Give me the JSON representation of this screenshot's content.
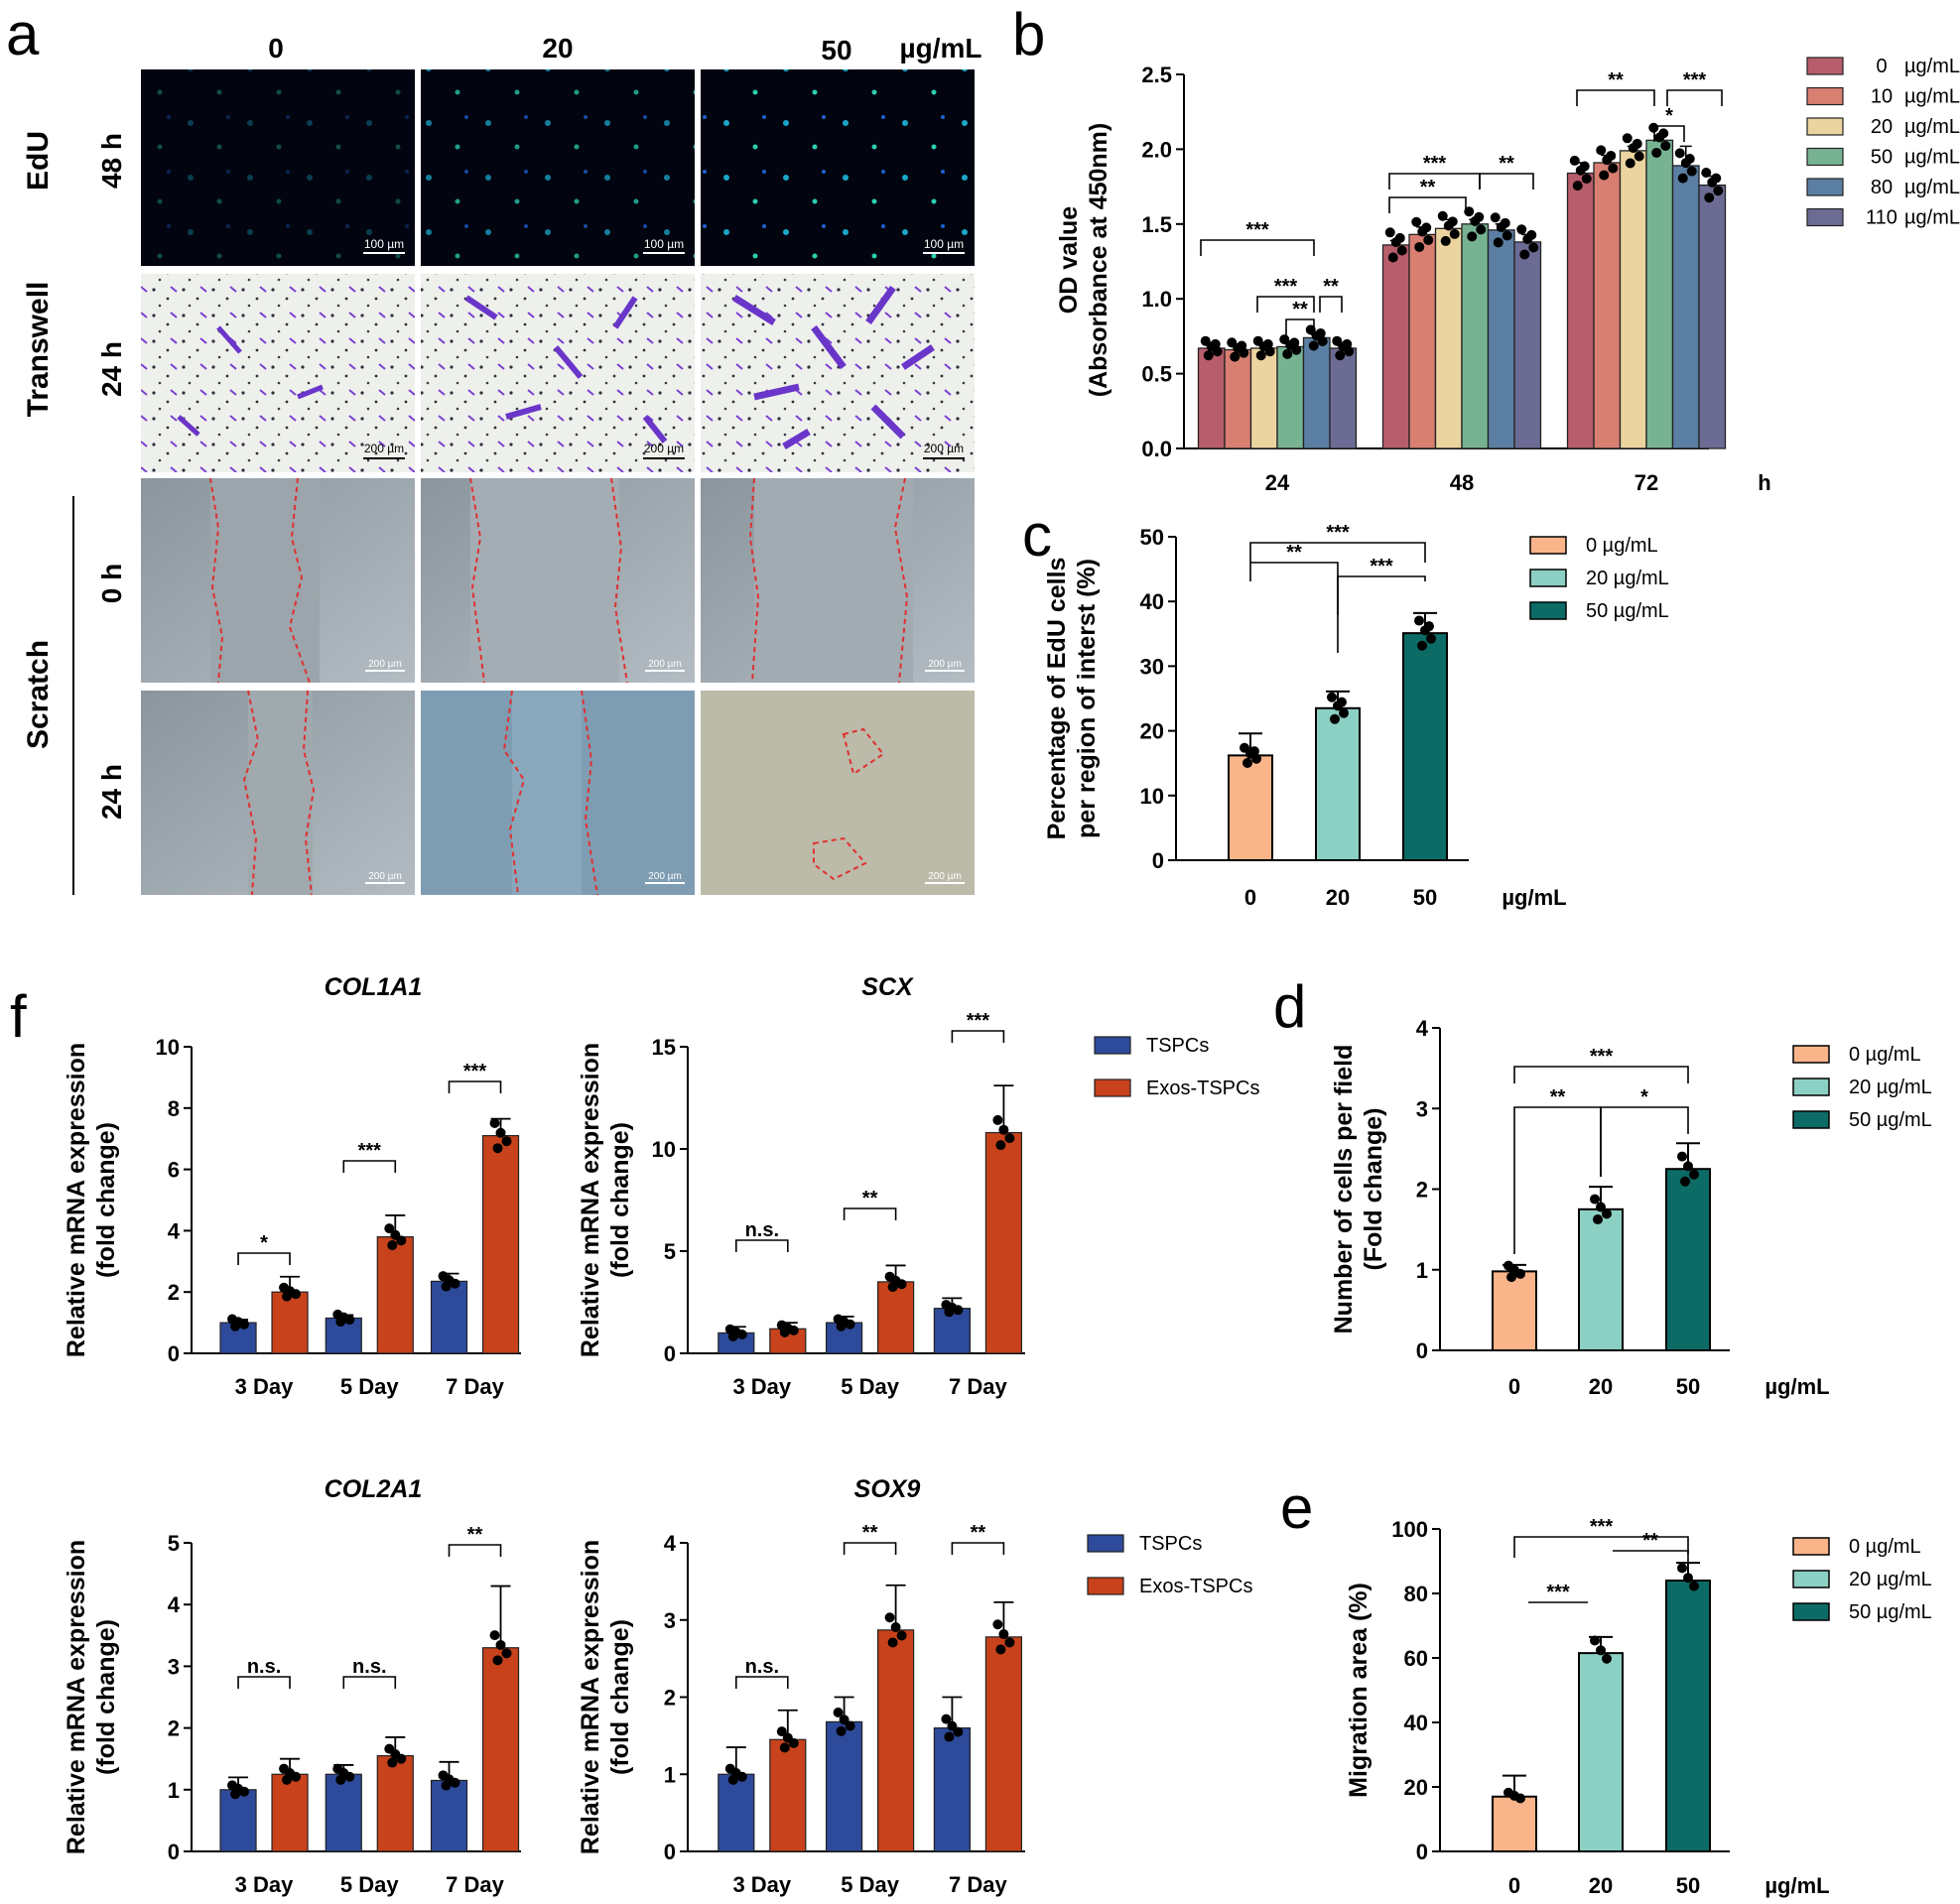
{
  "panel_labels": {
    "a": "a",
    "b": "b",
    "c": "c",
    "d": "d",
    "e": "e",
    "f": "f"
  },
  "panel_a": {
    "columns": [
      "0",
      "20",
      "50"
    ],
    "unit": "µg/mL",
    "rows": [
      {
        "group": "EdU",
        "time": "48 h",
        "scale": "100 µm"
      },
      {
        "group": "Transwell",
        "time": "24 h",
        "scale": "200 µm"
      },
      {
        "group": "Scratch",
        "time": "0 h",
        "scale": "200 µm"
      },
      {
        "group": "",
        "time": "24 h",
        "scale": "200 µm"
      }
    ],
    "scratch_label": "Scratch"
  },
  "chart_data": [
    {
      "id": "b",
      "type": "bar",
      "ylabel_line1": "OD value",
      "ylabel_line2": "(Absorbance at 450nm)",
      "xunit": "h",
      "categories": [
        "24",
        "48",
        "72"
      ],
      "ylim": [
        0,
        2.5
      ],
      "yticks": [
        "0.0",
        "0.5",
        "1.0",
        "1.5",
        "2.0",
        "2.5"
      ],
      "series": [
        {
          "name": "0",
          "unit": "µg/mL",
          "color": "#b85d6b",
          "values": [
            0.67,
            1.36,
            1.84
          ],
          "err": [
            0.02,
            0.03,
            0.07
          ]
        },
        {
          "name": "10",
          "unit": "µg/mL",
          "color": "#d87f72",
          "values": [
            0.66,
            1.43,
            1.91
          ],
          "err": [
            0.02,
            0.05,
            0.05
          ]
        },
        {
          "name": "20",
          "unit": "µg/mL",
          "color": "#ecd4a0",
          "values": [
            0.67,
            1.47,
            1.99
          ],
          "err": [
            0.02,
            0.06,
            0.03
          ]
        },
        {
          "name": "50",
          "unit": "µg/mL",
          "color": "#77b392",
          "values": [
            0.68,
            1.5,
            2.06
          ],
          "err": [
            0.02,
            0.03,
            0.03
          ]
        },
        {
          "name": "80",
          "unit": "µg/mL",
          "color": "#5b7fa3",
          "values": [
            0.74,
            1.46,
            1.89
          ],
          "err": [
            0.02,
            0.04,
            0.13
          ]
        },
        {
          "name": "110",
          "unit": "µg/mL",
          "color": "#6c6b93",
          "values": [
            0.67,
            1.38,
            1.76
          ],
          "err": [
            0.02,
            0.05,
            0.06
          ]
        }
      ],
      "significance": [
        "***",
        "***",
        "**",
        "**",
        "**",
        "***",
        "**",
        "**",
        "***",
        "*"
      ]
    },
    {
      "id": "c",
      "type": "bar",
      "ylabel_line1": "Percentage of EdU cells",
      "ylabel_line2": "per region of interst (%)",
      "xunit": "µg/mL",
      "categories": [
        "0",
        "20",
        "50"
      ],
      "ylim": [
        0,
        50
      ],
      "yticks": [
        "0",
        "10",
        "20",
        "30",
        "40",
        "50"
      ],
      "colors": [
        "#f9b48a",
        "#8ccfc3",
        "#0d6b66"
      ],
      "values": [
        16.2,
        23.5,
        35.1
      ],
      "err": [
        3.4,
        2.6,
        3.1
      ],
      "legend": [
        "0   µg/mL",
        "20 µg/mL",
        "50 µg/mL"
      ],
      "significance": [
        "**",
        "***",
        "***"
      ]
    },
    {
      "id": "d",
      "type": "bar",
      "ylabel_line1": "Number of cells per field",
      "ylabel_line2": "(Fold change)",
      "xunit": "µg/mL",
      "categories": [
        "0",
        "20",
        "50"
      ],
      "ylim": [
        0,
        4
      ],
      "yticks": [
        "0",
        "1",
        "2",
        "3",
        "4"
      ],
      "colors": [
        "#f9b48a",
        "#8ccfc3",
        "#0d6b66"
      ],
      "values": [
        0.98,
        1.75,
        2.25
      ],
      "err": [
        0.08,
        0.28,
        0.32
      ],
      "legend": [
        "0   µg/mL",
        "20 µg/mL",
        "50 µg/mL"
      ],
      "significance": [
        "**",
        "*",
        "***"
      ]
    },
    {
      "id": "e",
      "type": "bar",
      "ylabel_line1": "Migration area (%)",
      "ylabel_line2": "",
      "xunit": "µg/mL",
      "categories": [
        "0",
        "20",
        "50"
      ],
      "ylim": [
        0,
        100
      ],
      "yticks": [
        "0",
        "20",
        "40",
        "60",
        "80",
        "100"
      ],
      "colors": [
        "#f9b48a",
        "#8ccfc3",
        "#0d6b66"
      ],
      "values": [
        17,
        61.5,
        84
      ],
      "err": [
        6.5,
        5,
        5.5
      ],
      "legend": [
        "0   µg/mL",
        "20 µg/mL",
        "50 µg/mL"
      ],
      "significance": [
        "***",
        "**",
        "***"
      ]
    },
    {
      "id": "f1",
      "type": "bar",
      "title": "COL1A1",
      "ylabel_line1": "Relative mRNA expression",
      "ylabel_line2": "(fold change)",
      "categories": [
        "3 Day",
        "5 Day",
        "7 Day"
      ],
      "ylim": [
        0,
        10
      ],
      "yticks": [
        "0",
        "2",
        "4",
        "6",
        "8",
        "10"
      ],
      "series": [
        {
          "name": "TSPCs",
          "color": "#2e4a9a",
          "values": [
            1.0,
            1.15,
            2.35
          ],
          "err": [
            0.1,
            0.1,
            0.25
          ]
        },
        {
          "name": "Exos-TSPCs",
          "color": "#c8421b",
          "values": [
            2.0,
            3.8,
            7.1
          ],
          "err": [
            0.5,
            0.7,
            0.55
          ]
        }
      ],
      "significance": [
        "*",
        "***",
        "***"
      ]
    },
    {
      "id": "f2",
      "type": "bar",
      "title": "SCX",
      "ylabel_line1": "Relative mRNA expression",
      "ylabel_line2": "(fold change)",
      "categories": [
        "3 Day",
        "5 Day",
        "7 Day"
      ],
      "ylim": [
        0,
        15
      ],
      "yticks": [
        "0",
        "5",
        "10",
        "15"
      ],
      "series": [
        {
          "name": "TSPCs",
          "color": "#2e4a9a",
          "values": [
            1.0,
            1.5,
            2.2
          ],
          "err": [
            0.3,
            0.3,
            0.5
          ]
        },
        {
          "name": "Exos-TSPCs",
          "color": "#c8421b",
          "values": [
            1.2,
            3.5,
            10.8
          ],
          "err": [
            0.3,
            0.8,
            2.3
          ]
        }
      ],
      "significance": [
        "n.s.",
        "**",
        "***"
      ],
      "legend": [
        "TSPCs",
        "Exos-TSPCs"
      ]
    },
    {
      "id": "f3",
      "type": "bar",
      "title": "COL2A1",
      "ylabel_line1": "Relative mRNA expression",
      "ylabel_line2": "(fold change)",
      "categories": [
        "3 Day",
        "5 Day",
        "7 Day"
      ],
      "ylim": [
        0,
        5
      ],
      "yticks": [
        "0",
        "1",
        "2",
        "3",
        "4",
        "5"
      ],
      "series": [
        {
          "name": "TSPCs",
          "color": "#2e4a9a",
          "values": [
            1.0,
            1.25,
            1.15
          ],
          "err": [
            0.2,
            0.15,
            0.3
          ]
        },
        {
          "name": "Exos-TSPCs",
          "color": "#c8421b",
          "values": [
            1.25,
            1.55,
            3.3
          ],
          "err": [
            0.25,
            0.3,
            1.0
          ]
        }
      ],
      "significance": [
        "n.s.",
        "n.s.",
        "**"
      ]
    },
    {
      "id": "f4",
      "type": "bar",
      "title": "SOX9",
      "ylabel_line1": "Relative mRNA expression",
      "ylabel_line2": "(fold change)",
      "categories": [
        "3 Day",
        "5 Day",
        "7 Day"
      ],
      "ylim": [
        0,
        4
      ],
      "yticks": [
        "0",
        "1",
        "2",
        "3",
        "4"
      ],
      "series": [
        {
          "name": "TSPCs",
          "color": "#2e4a9a",
          "values": [
            1.0,
            1.68,
            1.6
          ],
          "err": [
            0.35,
            0.32,
            0.4
          ]
        },
        {
          "name": "Exos-TSPCs",
          "color": "#c8421b",
          "values": [
            1.45,
            2.87,
            2.78
          ],
          "err": [
            0.38,
            0.58,
            0.45
          ]
        }
      ],
      "significance": [
        "n.s.",
        "**",
        "**"
      ],
      "legend": [
        "TSPCs",
        "Exos-TSPCs"
      ]
    }
  ]
}
